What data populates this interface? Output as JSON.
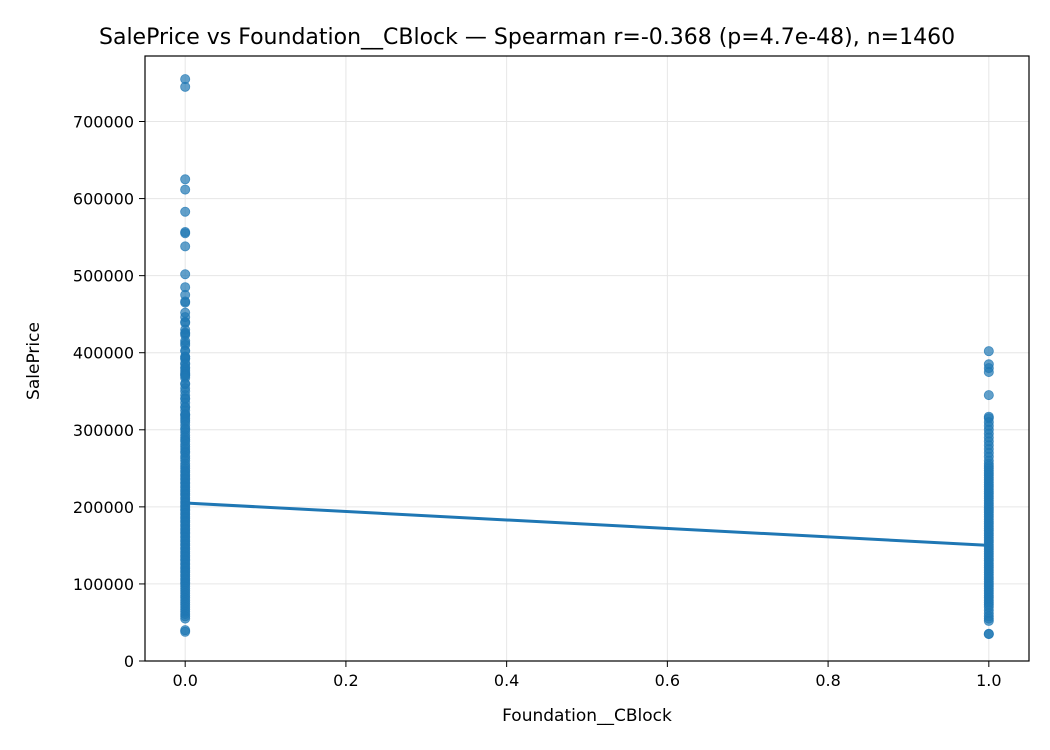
{
  "chart_data": {
    "type": "scatter",
    "title": "SalePrice vs Foundation__CBlock — Spearman r=-0.368 (p=4.7e-48), n=1460",
    "xlabel": "Foundation__CBlock",
    "ylabel": "SalePrice",
    "xlim": [
      -0.05,
      1.05
    ],
    "ylim": [
      0,
      785000
    ],
    "xticks": [
      0.0,
      0.2,
      0.4,
      0.6,
      0.8,
      1.0
    ],
    "xtick_labels": [
      "0.0",
      "0.2",
      "0.4",
      "0.6",
      "0.8",
      "1.0"
    ],
    "yticks": [
      0,
      100000,
      200000,
      300000,
      400000,
      500000,
      600000,
      700000
    ],
    "ytick_labels": [
      "0",
      "100000",
      "200000",
      "300000",
      "400000",
      "500000",
      "600000",
      "700000"
    ],
    "grid": true,
    "colors": {
      "points": "#1f77b4",
      "line": "#1f77b4",
      "grid": "#e6e6e6"
    },
    "series": [
      {
        "x_value": 0,
        "values": [
          755000,
          745000,
          625000,
          611657,
          582933,
          556581,
          555000,
          538000,
          501837,
          485000,
          475000,
          466500,
          465000,
          451950,
          446261,
          440000,
          438780,
          430000,
          426000,
          424870,
          423000,
          415298,
          412500,
          410000,
          402861,
          402000,
          395000,
          394617,
          392500,
          392000,
          386250,
          385000,
          381000,
          380000,
          377426,
          375000,
          372500,
          372402,
          370878,
          369900,
          367294,
          360000,
          359100,
          354000,
          350000,
          345000,
          341000,
          340000,
          335000,
          330000,
          328900,
          325000,
          320000,
          319900,
          318000,
          315000,
          312500,
          310000,
          306000,
          302000,
          300000,
          297000,
          293000,
          290000,
          287000,
          285000,
          281000,
          278000,
          275000,
          272000,
          270000,
          266000,
          263000,
          260000,
          256000,
          253000,
          250000,
          247000,
          245000,
          242000,
          240000,
          237000,
          235000,
          232000,
          230000,
          227000,
          225000,
          222000,
          220000,
          217000,
          215000,
          212000,
          210000,
          207000,
          205000,
          202000,
          200000,
          197000,
          195000,
          192000,
          190000,
          187000,
          185000,
          182000,
          180000,
          177000,
          175000,
          172000,
          170000,
          167000,
          165000,
          162000,
          160000,
          157000,
          155000,
          152000,
          150000,
          147000,
          145000,
          142000,
          140000,
          137000,
          135000,
          132000,
          130000,
          127000,
          125000,
          122000,
          120000,
          117000,
          115000,
          112000,
          110000,
          107000,
          105000,
          102000,
          100000,
          97000,
          94000,
          91000,
          88000,
          85000,
          82000,
          79000,
          76000,
          73000,
          70000,
          67000,
          64000,
          61000,
          58000,
          55000,
          40000,
          37900
        ]
      },
      {
        "x_value": 1,
        "values": [
          402000,
          385000,
          380000,
          375000,
          345000,
          317000,
          315000,
          310000,
          305000,
          300000,
          295000,
          290000,
          285000,
          280000,
          275000,
          270000,
          265000,
          260000,
          256000,
          253000,
          250000,
          247000,
          244000,
          241000,
          238000,
          235000,
          232000,
          229000,
          226000,
          223000,
          220000,
          217000,
          214000,
          211000,
          208000,
          205000,
          202000,
          199000,
          196000,
          193000,
          190000,
          187000,
          184000,
          181000,
          178000,
          175000,
          172000,
          169000,
          166000,
          163000,
          160000,
          157000,
          154000,
          151000,
          148000,
          145000,
          142000,
          139000,
          136000,
          133000,
          130000,
          127000,
          124000,
          121000,
          118000,
          115000,
          112000,
          109000,
          106000,
          103000,
          100000,
          97000,
          94000,
          91000,
          88000,
          85000,
          82000,
          79000,
          76000,
          73000,
          70000,
          66000,
          62000,
          58000,
          55000,
          52000,
          35311,
          34900
        ]
      }
    ],
    "fit_line": {
      "x": [
        0,
        1
      ],
      "y": [
        205000,
        150000
      ]
    }
  }
}
